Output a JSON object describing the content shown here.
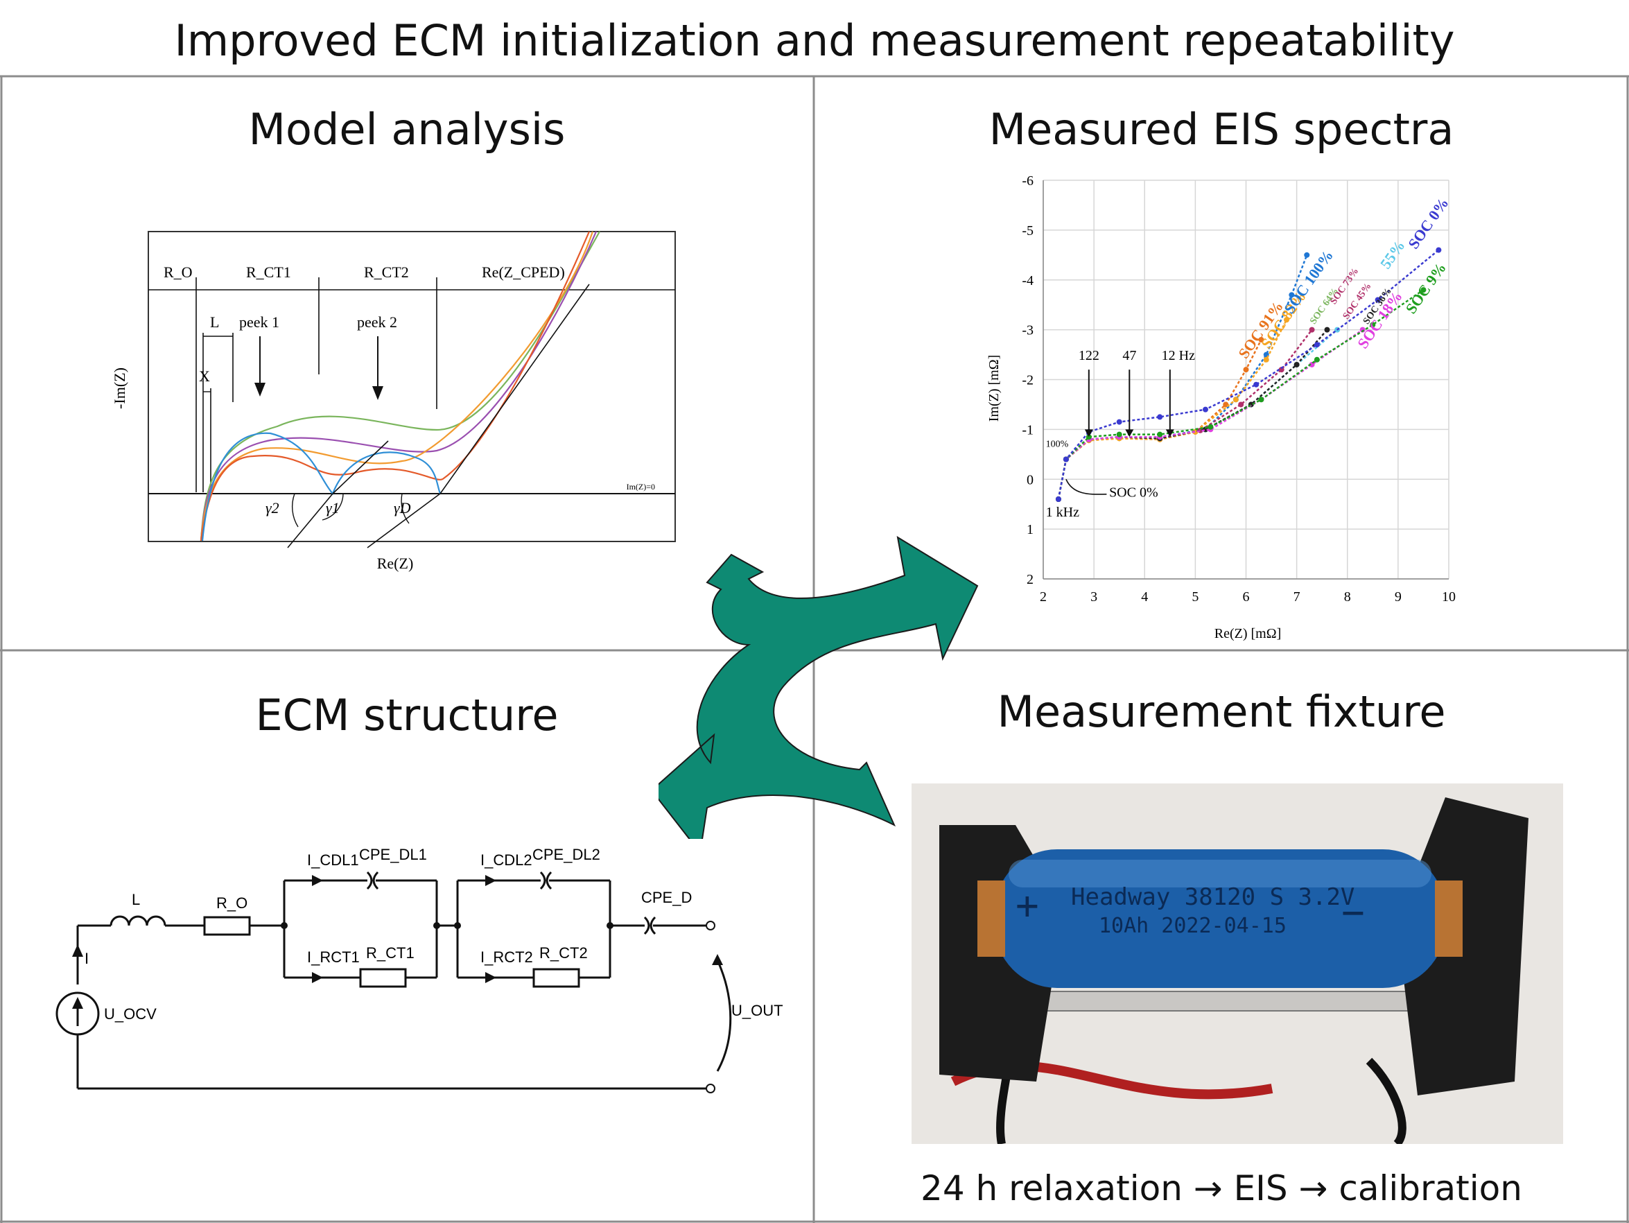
{
  "title": "Improved ECM initialization and measurement repeatability",
  "panels": {
    "model": {
      "title": "Model analysis",
      "labels": {
        "ro": "R_O",
        "rct1": "R_CT1",
        "rct2": "R_CT2",
        "rezcped": "Re(Z_CPED)",
        "L": "L",
        "X": "X",
        "peek1": "peek 1",
        "peek2": "peek 2",
        "ylabel": "-Im(Z)",
        "xlabel": "Re(Z)",
        "imz0": "Im(Z)=0",
        "g2": "γ2",
        "g1": "γ1",
        "gD": "γD"
      }
    },
    "eis": {
      "title": "Measured EIS spectra",
      "xlabel": "Re(Z) [mΩ]",
      "ylabel": "Im(Z) [mΩ]",
      "freq_labels": [
        "122",
        "47",
        "12 Hz"
      ],
      "khz_label": "1 kHz",
      "soc0_label": "SOC 0%",
      "pct100_label": "100%",
      "soc_labels": [
        "SOC 91%",
        "SOC 82%",
        "SOC 100%",
        "SOC 64%",
        "SOC 73%",
        "SOC 45%",
        "55%",
        "SOC 36%",
        "SOC 18%",
        "SOC 9%",
        "SOC 0%"
      ]
    },
    "ecm": {
      "title": "ECM structure",
      "labels": {
        "L": "L",
        "ro": "R_O",
        "icdl1": "I_CDL1",
        "cpedl1": "CPE_DL1",
        "icdl2": "I_CDL2",
        "cpedl2": "CPE_DL2",
        "cped": "CPE_D",
        "irct1": "I_RCT1",
        "rct1": "R_CT1",
        "irct2": "I_RCT2",
        "rct2": "R_CT2",
        "i": "I",
        "uocv": "U_OCV",
        "uout": "U_OUT"
      }
    },
    "fixture": {
      "title": "Measurement fixture",
      "cell_text_1": "Headway 38120 S 3.2V",
      "cell_text_2": "10Ah 2022-04-15",
      "caption": "24 h relaxation → EIS → calibration"
    }
  },
  "colors": {
    "arrow": "#0e8a73",
    "grid": "#8c8c8c"
  },
  "chart_data": {
    "type": "scatter",
    "title": "Measured EIS spectra",
    "xlabel": "Re(Z) [mΩ]",
    "ylabel": "Im(Z) [mΩ]",
    "xlim": [
      2,
      10
    ],
    "ylim": [
      2,
      -6
    ],
    "y_inverted": true,
    "x_ticks": [
      2,
      3,
      4,
      5,
      6,
      7,
      8,
      9,
      10
    ],
    "y_ticks": [
      -6,
      -5,
      -4,
      -3,
      -2,
      -1,
      0,
      1,
      2
    ],
    "grid": true,
    "series": [
      {
        "name": "SOC 100%",
        "color": "#1f77d4",
        "x": [
          2.3,
          2.45,
          2.9,
          3.5,
          4.3,
          5.2,
          5.8,
          6.4,
          6.9,
          7.2
        ],
        "y": [
          0.4,
          -0.4,
          -0.8,
          -0.85,
          -0.85,
          -1.0,
          -1.6,
          -2.5,
          -3.7,
          -4.5
        ]
      },
      {
        "name": "SOC 91%",
        "color": "#e8731d",
        "x": [
          2.3,
          2.45,
          2.9,
          3.5,
          4.3,
          5.0,
          5.6,
          6.0,
          6.3
        ],
        "y": [
          0.4,
          -0.4,
          -0.78,
          -0.82,
          -0.8,
          -0.95,
          -1.5,
          -2.2,
          -2.8
        ]
      },
      {
        "name": "SOC 82%",
        "color": "#f5a623",
        "x": [
          2.3,
          2.45,
          2.9,
          3.5,
          4.3,
          5.0,
          5.8,
          6.4,
          6.8
        ],
        "y": [
          0.4,
          -0.4,
          -0.78,
          -0.82,
          -0.8,
          -0.95,
          -1.6,
          -2.4,
          -3.2
        ]
      },
      {
        "name": "SOC 73%",
        "color": "#b0306a",
        "x": [
          2.3,
          2.45,
          2.9,
          3.5,
          4.3,
          5.1,
          5.9,
          6.7,
          7.3
        ],
        "y": [
          0.4,
          -0.4,
          -0.8,
          -0.85,
          -0.82,
          -0.98,
          -1.5,
          -2.2,
          -3.0
        ]
      },
      {
        "name": "SOC 55%",
        "color": "#5bc8e8",
        "x": [
          2.3,
          2.45,
          2.9,
          3.5,
          4.3,
          5.2,
          6.1,
          7.0,
          7.8
        ],
        "y": [
          0.4,
          -0.4,
          -0.8,
          -0.85,
          -0.82,
          -1.0,
          -1.5,
          -2.3,
          -3.0
        ]
      },
      {
        "name": "SOC 36%",
        "color": "#222222",
        "x": [
          2.3,
          2.45,
          2.9,
          3.5,
          4.3,
          5.2,
          6.1,
          7.0,
          7.6
        ],
        "y": [
          0.4,
          -0.4,
          -0.8,
          -0.85,
          -0.82,
          -1.0,
          -1.5,
          -2.3,
          -3.0
        ]
      },
      {
        "name": "SOC 18%",
        "color": "#e040e0",
        "x": [
          2.3,
          2.45,
          2.9,
          3.5,
          4.3,
          5.3,
          6.3,
          7.3,
          8.3
        ],
        "y": [
          0.4,
          -0.4,
          -0.8,
          -0.85,
          -0.85,
          -1.0,
          -1.6,
          -2.3,
          -3.0
        ]
      },
      {
        "name": "SOC 9%",
        "color": "#1e9e1e",
        "x": [
          2.3,
          2.45,
          2.9,
          3.5,
          4.3,
          5.3,
          6.3,
          7.4,
          8.5,
          9.5
        ],
        "y": [
          0.4,
          -0.4,
          -0.85,
          -0.9,
          -0.9,
          -1.05,
          -1.6,
          -2.4,
          -3.1,
          -3.8
        ]
      },
      {
        "name": "SOC 0%",
        "color": "#3a3ad0",
        "x": [
          2.3,
          2.45,
          2.9,
          3.5,
          4.3,
          5.2,
          6.2,
          7.4,
          8.6,
          9.8
        ],
        "y": [
          0.4,
          -0.4,
          -0.95,
          -1.15,
          -1.25,
          -1.4,
          -1.9,
          -2.7,
          -3.6,
          -4.6
        ]
      }
    ],
    "annotations": [
      "122",
      "47",
      "12 Hz",
      "1 kHz",
      "SOC 0%",
      "100%"
    ]
  }
}
